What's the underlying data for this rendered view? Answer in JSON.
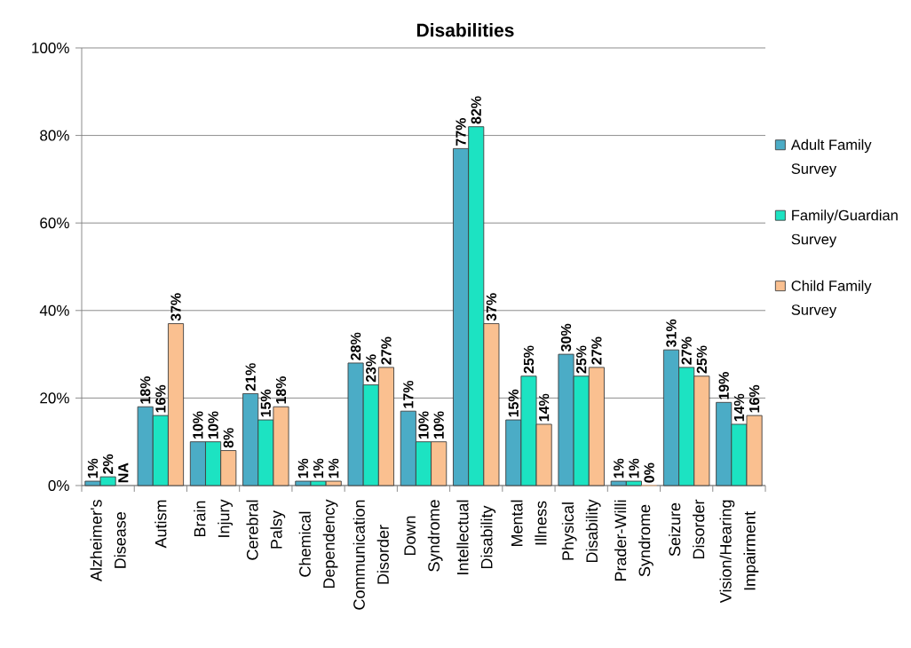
{
  "chart_data": {
    "type": "bar",
    "title": "Disabilities",
    "categories": [
      "Alzheimer's Disease",
      "Autism",
      "Brain Injury",
      "Cerebral Palsy",
      "Chemical Dependency",
      "Communication Disorder",
      "Down Syndrome",
      "Intellectual Disability",
      "Mental Illness",
      "Physical Disability",
      "Prader-Willi Syndrome",
      "Seizure Disorder",
      "Vision/Hearing Impairment"
    ],
    "series": [
      {
        "name": "Adult Family Survey",
        "color": "#4BACC6",
        "values": [
          1,
          18,
          10,
          21,
          1,
          28,
          17,
          77,
          15,
          30,
          1,
          31,
          19
        ],
        "value_labels": [
          "1%",
          "18%",
          "10%",
          "21%",
          "1%",
          "28%",
          "17%",
          "77%",
          "15%",
          "30%",
          "1%",
          "31%",
          "19%"
        ]
      },
      {
        "name": "Family/Guardian Survey",
        "color": "#1CE3C2",
        "values": [
          2,
          16,
          10,
          15,
          1,
          23,
          10,
          82,
          25,
          25,
          1,
          27,
          14
        ],
        "value_labels": [
          "2%",
          "16%",
          "10%",
          "15%",
          "1%",
          "23%",
          "10%",
          "82%",
          "25%",
          "25%",
          "1%",
          "27%",
          "14%"
        ]
      },
      {
        "name": "Child Family Survey",
        "color": "#FAC090",
        "values": [
          null,
          37,
          8,
          18,
          1,
          27,
          10,
          37,
          14,
          27,
          0,
          25,
          16
        ],
        "value_labels": [
          "NA",
          "37%",
          "8%",
          "18%",
          "1%",
          "27%",
          "10%",
          "37%",
          "14%",
          "27%",
          "0%",
          "25%",
          "16%"
        ]
      }
    ],
    "ylim": [
      0,
      100
    ],
    "yticks": [
      {
        "value": 0,
        "label": "0%"
      },
      {
        "value": 20,
        "label": "20%"
      },
      {
        "value": 40,
        "label": "40%"
      },
      {
        "value": 60,
        "label": "60%"
      },
      {
        "value": 80,
        "label": "80%"
      },
      {
        "value": 100,
        "label": "100%"
      }
    ],
    "grid": "y",
    "legend": "right"
  }
}
